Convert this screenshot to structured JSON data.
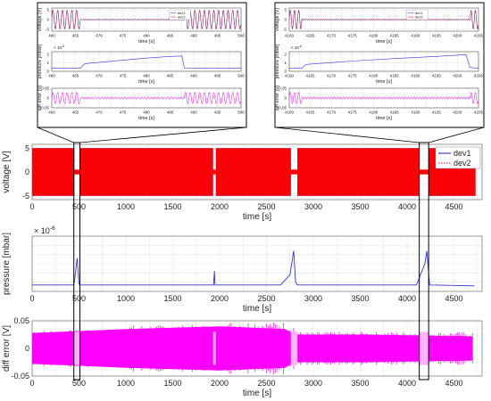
{
  "chart_data": {
    "type": "line",
    "main": {
      "voltage": {
        "ylabel": "voltage [V]",
        "xlabel": "time [s]",
        "xlim": [
          0,
          4800
        ],
        "ylim": [
          -5,
          5
        ],
        "xticks": [
          "0",
          "500",
          "1000",
          "1500",
          "2000",
          "2500",
          "3000",
          "3500",
          "4000",
          "4500"
        ],
        "yticks": [
          "-5",
          "0",
          "5"
        ],
        "legend": [
          "dev1",
          "dev2"
        ],
        "legend_position": "top-right",
        "amplitude": 5,
        "gaps_at_zero": [
          [
            450,
            510
          ],
          [
            1930,
            1960
          ],
          [
            2760,
            2830
          ],
          [
            4130,
            4230
          ]
        ],
        "data_range": [
          0,
          4730
        ]
      },
      "pressure": {
        "ylabel": "pressure [mbar]",
        "xlabel": "time [s]",
        "exponent_label": "× 10",
        "exponent": "-6",
        "xlim": [
          0,
          4800
        ],
        "ylim": [
          0,
          3
        ],
        "xticks": [
          "0",
          "500",
          "1000",
          "1500",
          "2000",
          "2500",
          "3000",
          "3500",
          "4000",
          "4500"
        ],
        "baseline": 0.35,
        "x": [
          0,
          440,
          450,
          480,
          500,
          510,
          1900,
          1935,
          1945,
          1950,
          2650,
          2750,
          2790,
          2810,
          2830,
          4100,
          4190,
          4210,
          4240,
          4720
        ],
        "y": [
          0.35,
          0.35,
          0.5,
          1.8,
          0.4,
          0.35,
          0.35,
          0.35,
          1.1,
          0.35,
          0.35,
          0.9,
          2.2,
          0.5,
          0.35,
          0.35,
          1.5,
          2.2,
          0.35,
          0.3
        ]
      },
      "diff": {
        "ylabel": "diff error [V]",
        "xlabel": "time [s]",
        "xlim": [
          0,
          4800
        ],
        "ylim": [
          -0.05,
          0.05
        ],
        "xticks": [
          "0",
          "500",
          "1000",
          "1500",
          "2000",
          "2500",
          "3000",
          "3500",
          "4000",
          "4500"
        ],
        "yticks": [
          "-0.05",
          "0",
          "0.05"
        ],
        "band_upper_x": [
          0,
          1000,
          2000,
          2700,
          2800,
          3600,
          4700
        ],
        "band_upper_y": [
          0.028,
          0.035,
          0.04,
          0.035,
          0.025,
          0.025,
          0.022
        ]
      }
    },
    "insets": [
      {
        "xlim": [
          460,
          500
        ],
        "voltage": {
          "ylabel": "voltage [V]",
          "xticks": [
            "460",
            "465",
            "470",
            "475",
            "480",
            "485",
            "490",
            "495",
            "500"
          ],
          "yticks": [
            "-5",
            "0",
            "5"
          ],
          "legend": [
            "dev1",
            "dev2"
          ],
          "active_ranges": [
            [
              460,
              466
            ],
            [
              488,
              500
            ]
          ]
        },
        "pressure": {
          "ylabel": "pressure [mbar]",
          "exponent_label": "× 10",
          "exponent": "-6",
          "xticks": [
            "460",
            "465",
            "470",
            "475",
            "480",
            "485",
            "490",
            "495",
            "500"
          ],
          "yticks": [
            "0",
            "1",
            "2"
          ],
          "x": [
            460,
            466,
            467,
            475,
            480,
            485,
            487.5,
            488,
            500
          ],
          "y": [
            0.35,
            0.35,
            0.9,
            1.3,
            1.55,
            1.75,
            1.8,
            0.4,
            0.35
          ]
        },
        "diff": {
          "ylabel": "diff error [V]",
          "xticks": [
            "460",
            "465",
            "470",
            "475",
            "480",
            "485",
            "490",
            "495",
            "500"
          ],
          "yticks": [
            "-0.05",
            "0",
            "0.05"
          ],
          "active_ranges": [
            [
              460,
              466
            ],
            [
              488,
              500
            ]
          ]
        }
      },
      {
        "xlim": [
          4160,
          4205
        ],
        "voltage": {
          "ylabel": "voltage [V]",
          "xticks": [
            "4160",
            "4165",
            "4170",
            "4175",
            "4180",
            "4185",
            "4190",
            "4195",
            "4200",
            "4205"
          ],
          "yticks": [
            "-5",
            "0",
            "5"
          ],
          "legend": [
            "dev1",
            "dev2"
          ],
          "active_ranges": [
            [
              4160,
              4163
            ],
            [
              4203,
              4205
            ]
          ]
        },
        "pressure": {
          "ylabel": "pressure [mbar]",
          "exponent_label": "× 10",
          "exponent": "-6",
          "xticks": [
            "4160",
            "4165",
            "4170",
            "4175",
            "4180",
            "4185",
            "4190",
            "4195",
            "4200",
            "4205"
          ],
          "yticks": [
            "0",
            "1",
            "2"
          ],
          "x": [
            4160,
            4163,
            4164,
            4175,
            4185,
            4195,
            4202,
            4203,
            4205
          ],
          "y": [
            0.35,
            0.35,
            0.8,
            1.2,
            1.5,
            1.75,
            1.95,
            0.45,
            0.35
          ]
        },
        "diff": {
          "ylabel": "diff error [V]",
          "xticks": [
            "4160",
            "4165",
            "4170",
            "4175",
            "4180",
            "4185",
            "4190",
            "4195",
            "4200",
            "4205"
          ],
          "yticks": [
            "-0.05",
            "0",
            "0.05"
          ],
          "active_ranges": [
            [
              4160,
              4163
            ],
            [
              4203,
              4205
            ]
          ]
        }
      }
    ],
    "colors": {
      "dev1": "#2222cc",
      "dev2": "#ff0000",
      "pressure": "#3333dd",
      "diff": "#ff00ff",
      "grid": "#e2e2e2",
      "box": "#000000"
    }
  }
}
